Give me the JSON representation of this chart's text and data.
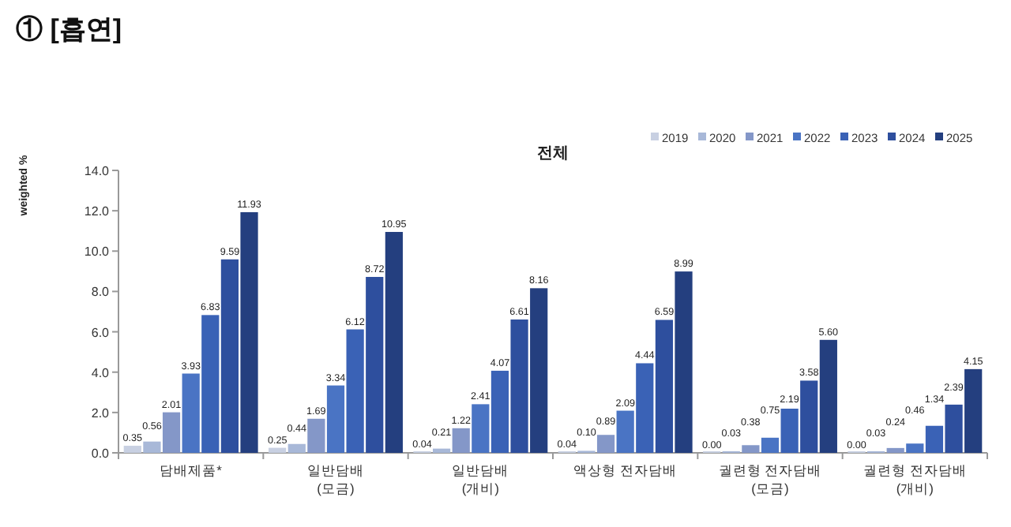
{
  "chart_data": {
    "type": "bar",
    "title": "전체",
    "ylabel": "weighted %",
    "annotations": [
      "① [흡연]"
    ],
    "categories": [
      "담배제품*",
      "일반담배\n(모금)",
      "일반담배\n(개비)",
      "액상형 전자담배",
      "궐련형 전자담배\n(모금)",
      "궐련형 전자담배\n(개비)"
    ],
    "series": [
      {
        "name": "2019",
        "color": "#c8d0e2",
        "values": [
          0.35,
          0.25,
          0.04,
          0.04,
          0.0,
          0.0
        ],
        "value_labels": [
          "0.35",
          "0.25",
          "0.04",
          "0.04",
          "0.00",
          "0.00"
        ]
      },
      {
        "name": "2020",
        "color": "#a8b8d8",
        "values": [
          0.56,
          0.44,
          0.21,
          0.1,
          0.03,
          0.03
        ],
        "value_labels": [
          "0.56",
          "0.44",
          "0.21",
          "0.10",
          "0.03",
          "0.03"
        ]
      },
      {
        "name": "2021",
        "color": "#8497c8",
        "values": [
          2.01,
          1.69,
          1.22,
          0.89,
          0.38,
          0.24
        ],
        "value_labels": [
          "2.01",
          "1.69",
          "1.22",
          "0.89",
          "0.38",
          "0.24"
        ]
      },
      {
        "name": "2022",
        "color": "#4a74c4",
        "values": [
          3.93,
          3.34,
          2.41,
          2.09,
          0.75,
          0.46
        ],
        "value_labels": [
          "3.93",
          "3.34",
          "2.41",
          "2.09",
          "0.75",
          "0.46"
        ]
      },
      {
        "name": "2023",
        "color": "#3a62b6",
        "values": [
          6.83,
          6.12,
          4.07,
          4.44,
          2.19,
          1.34
        ],
        "value_labels": [
          "6.83",
          "6.12",
          "4.07",
          "4.44",
          "2.19",
          "1.34"
        ]
      },
      {
        "name": "2024",
        "color": "#2e4f9e",
        "values": [
          9.59,
          8.72,
          6.61,
          6.59,
          3.58,
          2.39
        ],
        "value_labels": [
          "9.59",
          "8.72",
          "6.61",
          "6.59",
          "3.58",
          "2.39"
        ]
      },
      {
        "name": "2025",
        "color": "#243f7f",
        "values": [
          11.93,
          10.95,
          8.16,
          8.99,
          5.6,
          4.15
        ],
        "value_labels": [
          "11.93",
          "10.95",
          "8.16",
          "8.99",
          "5.60",
          "4.15"
        ]
      }
    ],
    "ylim": [
      0,
      14
    ],
    "yticks": [
      {
        "value": 0,
        "label": "0.0"
      },
      {
        "value": 2,
        "label": "2.0"
      },
      {
        "value": 4,
        "label": "4.0"
      },
      {
        "value": 6,
        "label": "6.0"
      },
      {
        "value": 8,
        "label": "8.0"
      },
      {
        "value": 10,
        "label": "10.0"
      },
      {
        "value": 12,
        "label": "12.0"
      },
      {
        "value": 14,
        "label": "14.0"
      }
    ],
    "legend": "top right",
    "grid": false
  }
}
